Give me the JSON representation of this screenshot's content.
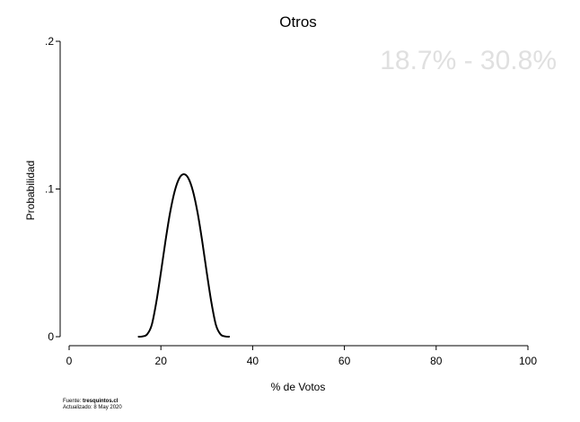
{
  "chart_data": {
    "type": "line",
    "title": "Otros",
    "xlabel": "% de Votos",
    "ylabel": "Probabilidad",
    "xlim": [
      0,
      100
    ],
    "ylim": [
      0,
      0.2
    ],
    "x_ticks": [
      0,
      20,
      40,
      60,
      80,
      100
    ],
    "x_tick_labels": [
      "0",
      "20",
      "40",
      "60",
      "80",
      "100"
    ],
    "y_ticks": [
      0,
      0.1,
      0.2
    ],
    "y_tick_labels": [
      "0",
      ".1",
      ".2"
    ],
    "annotation": "18.7% - 30.8%",
    "grid": false,
    "series": [
      {
        "x": [
          15,
          16,
          17,
          18,
          19,
          20,
          21,
          22,
          23,
          24,
          25,
          26,
          27,
          28,
          29,
          30,
          31,
          32,
          33,
          34,
          35
        ],
        "y": [
          0.0,
          0.0002,
          0.0016,
          0.0079,
          0.0234,
          0.0434,
          0.0648,
          0.0839,
          0.0984,
          0.1072,
          0.11,
          0.1072,
          0.0984,
          0.0839,
          0.0648,
          0.0434,
          0.0234,
          0.0079,
          0.0016,
          0.0002,
          0.0
        ]
      }
    ]
  },
  "footer": {
    "source_label": "Fuente: ",
    "source_value": "tresquintos.cl",
    "updated_label": "Actualizado: ",
    "updated_value": "8 May 2020"
  },
  "colors": {
    "line": "#000000",
    "annotation": "#e0e0e0"
  }
}
